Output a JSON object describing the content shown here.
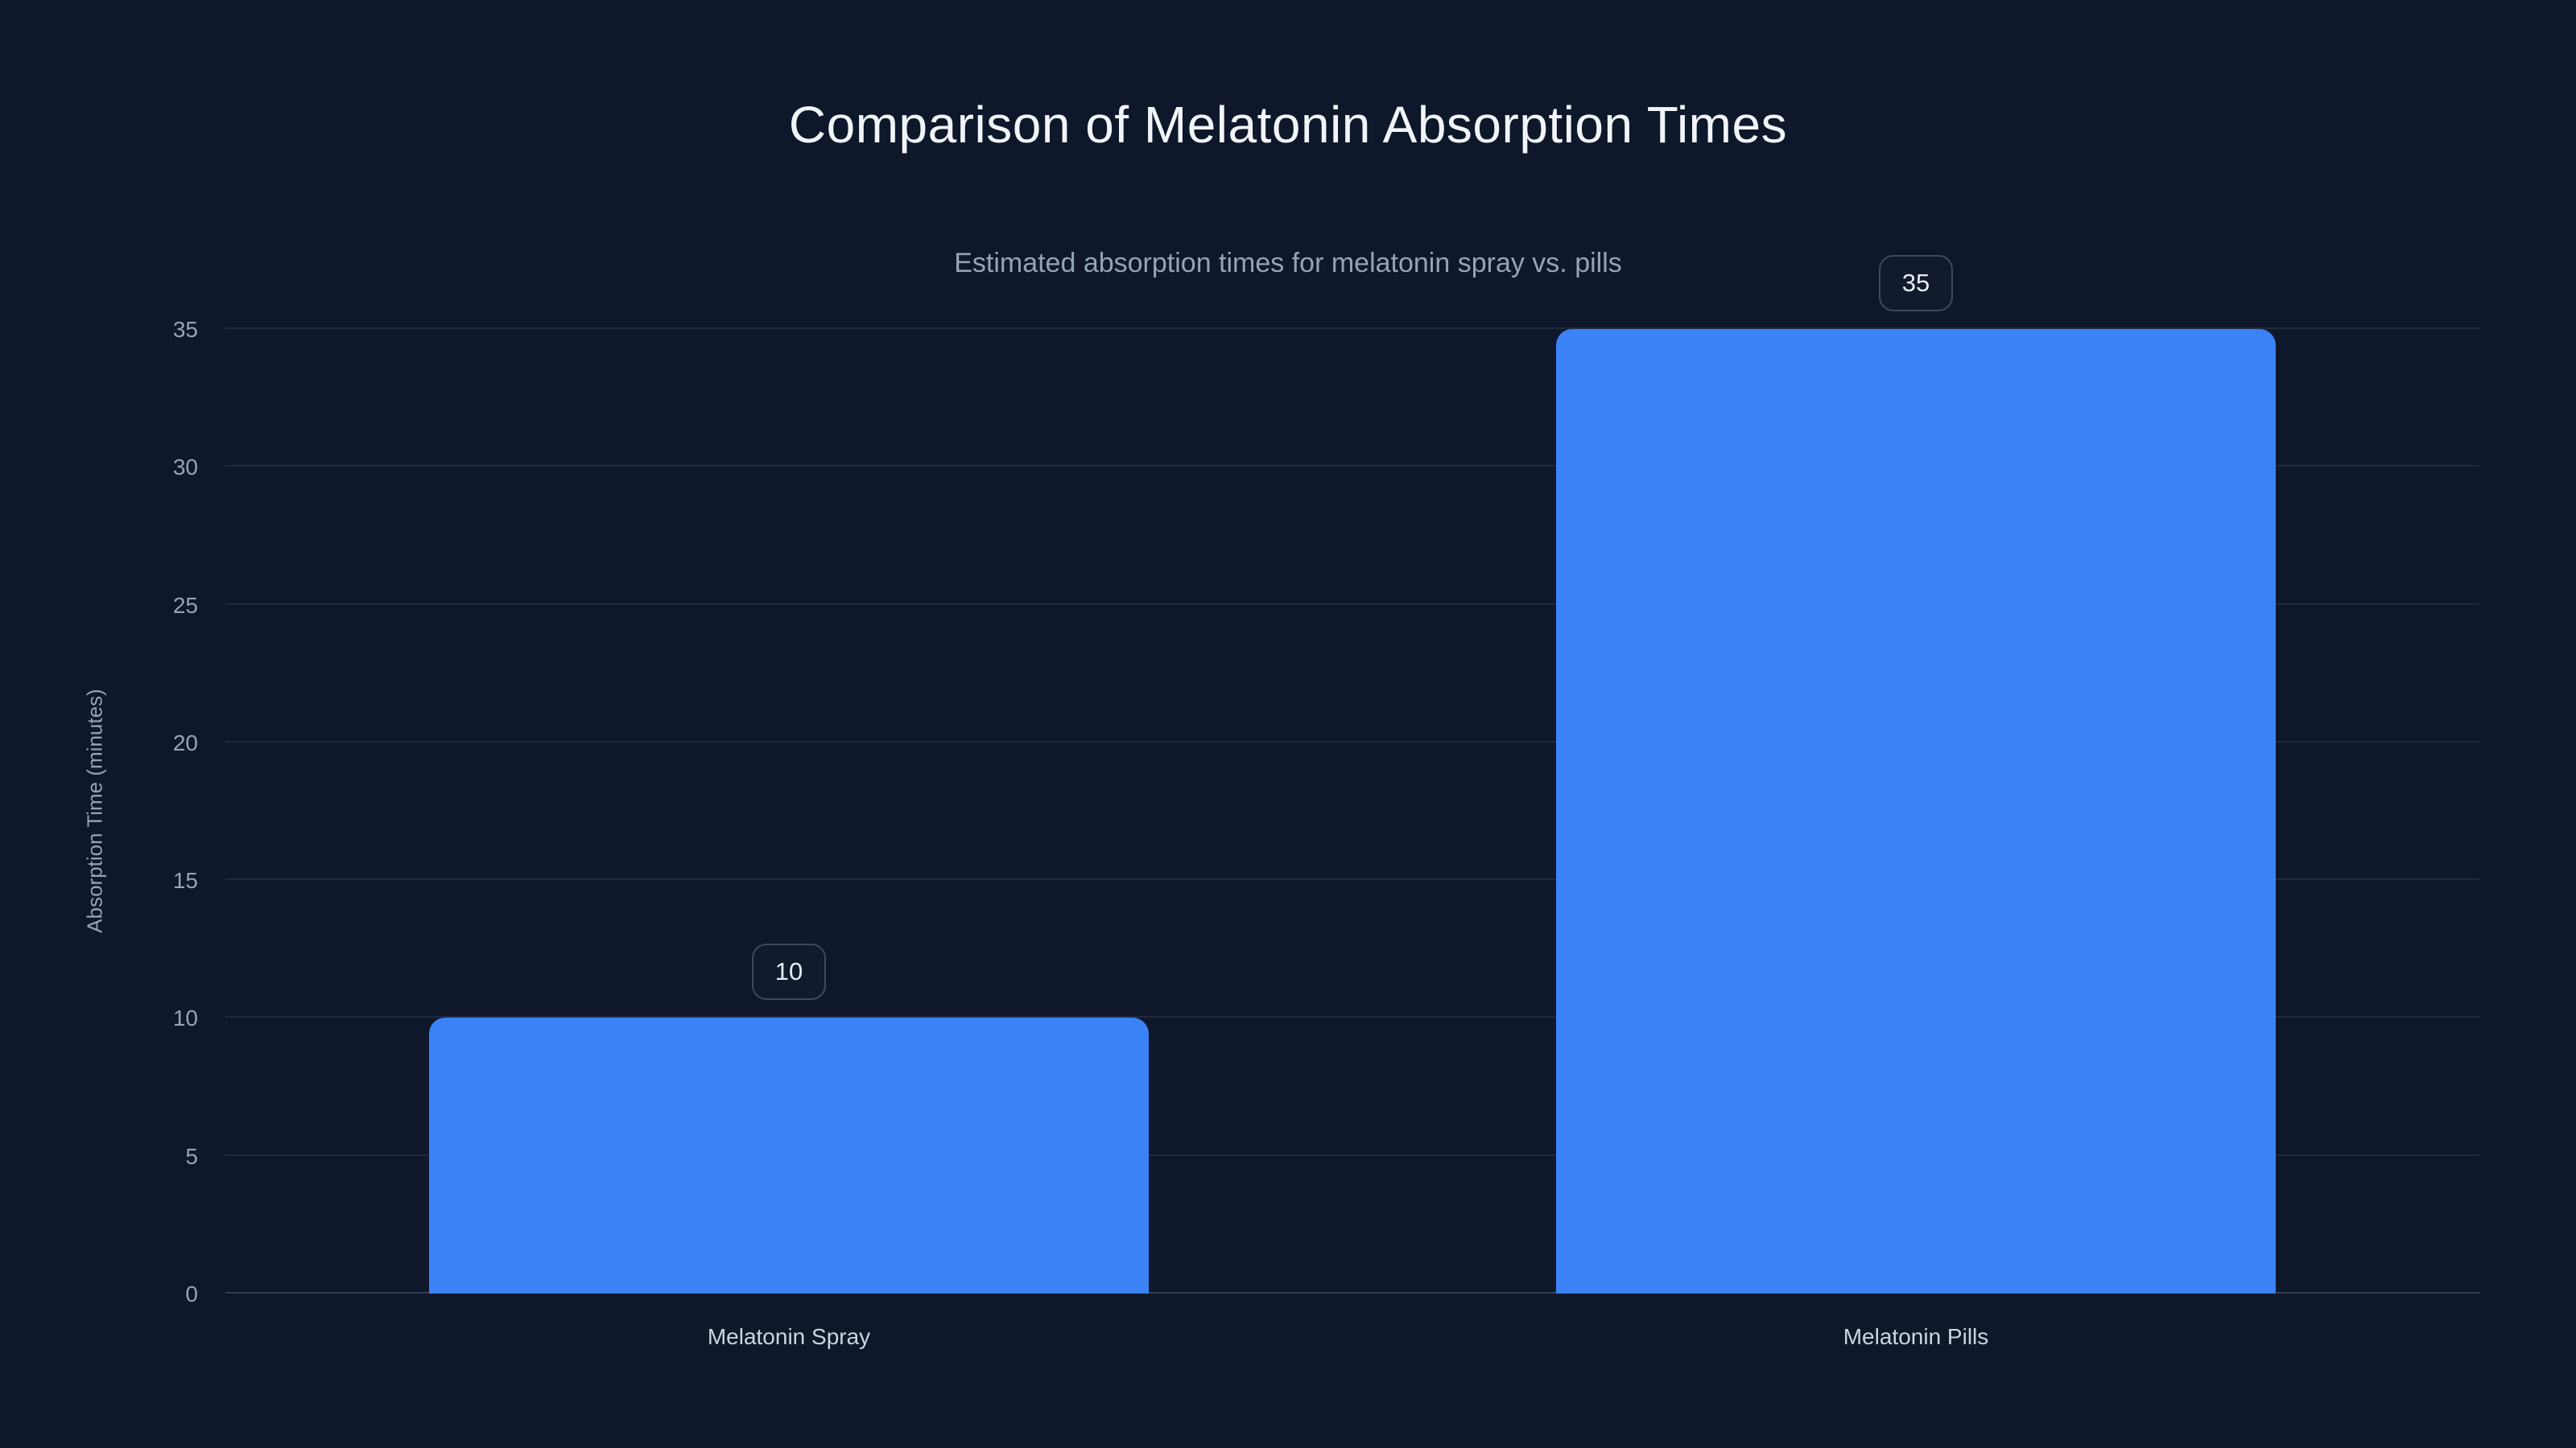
{
  "header": {
    "title": "Comparison of Melatonin Absorption Times",
    "subtitle": "Estimated absorption times for melatonin spray vs. pills"
  },
  "chart_data": {
    "type": "bar",
    "title": "Comparison of Melatonin Absorption Times",
    "subtitle": "Estimated absorption times for melatonin spray vs. pills",
    "categories": [
      "Melatonin Spray",
      "Melatonin Pills"
    ],
    "values": [
      10,
      35
    ],
    "data_labels": [
      "10",
      "35"
    ],
    "xlabel": "",
    "ylabel": "Absorption Time (minutes)",
    "ylim": [
      0,
      35
    ],
    "yticks": [
      0,
      5,
      10,
      15,
      20,
      25,
      30,
      35
    ],
    "grid": true,
    "legend": false,
    "colors": {
      "bg": "#0f172a",
      "bar": "#3b82f6",
      "title": "#f1f5f9",
      "subtitle": "#94a3b8",
      "tick": "#94a3b8",
      "cat": "#cbd5e1",
      "badge-border": "#3d4b60",
      "badge-text": "#e8edf5"
    }
  }
}
